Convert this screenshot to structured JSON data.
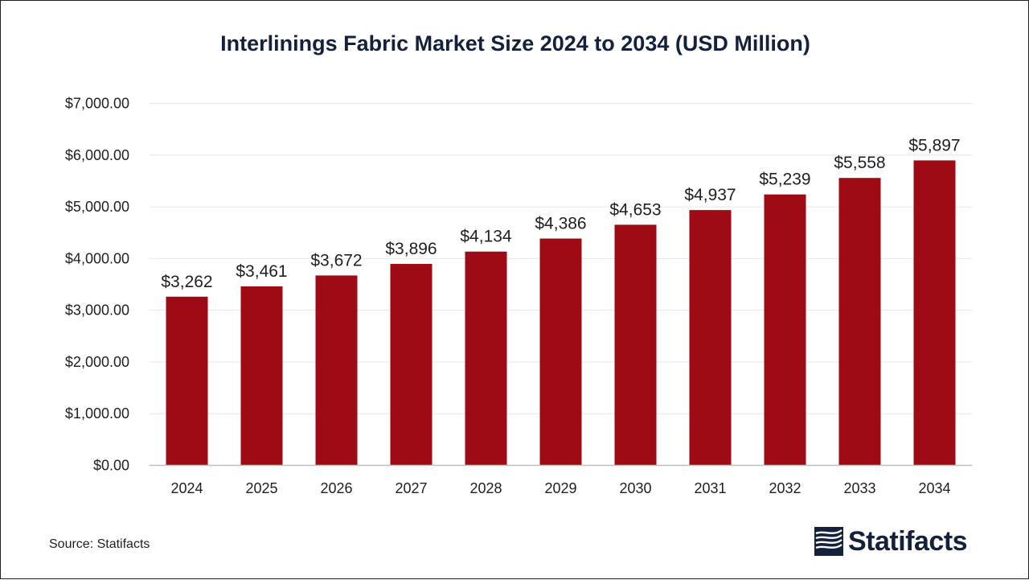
{
  "chart_data": {
    "type": "bar",
    "title": "Interlinings Fabric Market Size 2024 to 2034 (USD Million)",
    "categories": [
      "2024",
      "2025",
      "2026",
      "2027",
      "2028",
      "2029",
      "2030",
      "2031",
      "2032",
      "2033",
      "2034"
    ],
    "values": [
      3262,
      3461,
      3672,
      3896,
      4134,
      4386,
      4653,
      4937,
      5239,
      5558,
      5897
    ],
    "data_labels": [
      "$3,262",
      "$3,461",
      "$3,672",
      "$3,896",
      "$4,134",
      "$4,386",
      "$4,653",
      "$4,937",
      "$5,239",
      "$5,558",
      "$5,897"
    ],
    "y_ticks": [
      0,
      1000,
      2000,
      3000,
      4000,
      5000,
      6000,
      7000
    ],
    "y_tick_labels": [
      "$0.00",
      "$1,000.00",
      "$2,000.00",
      "$3,000.00",
      "$4,000.00",
      "$5,000.00",
      "$6,000.00",
      "$7,000.00"
    ],
    "ylim": [
      0,
      7000
    ],
    "grid": true,
    "legend": "none",
    "bar_color": "#9e0b14"
  },
  "footer": {
    "source": "Source: Statifacts",
    "brand": "Statifacts",
    "brand_icon": "statifacts-logo-icon"
  }
}
